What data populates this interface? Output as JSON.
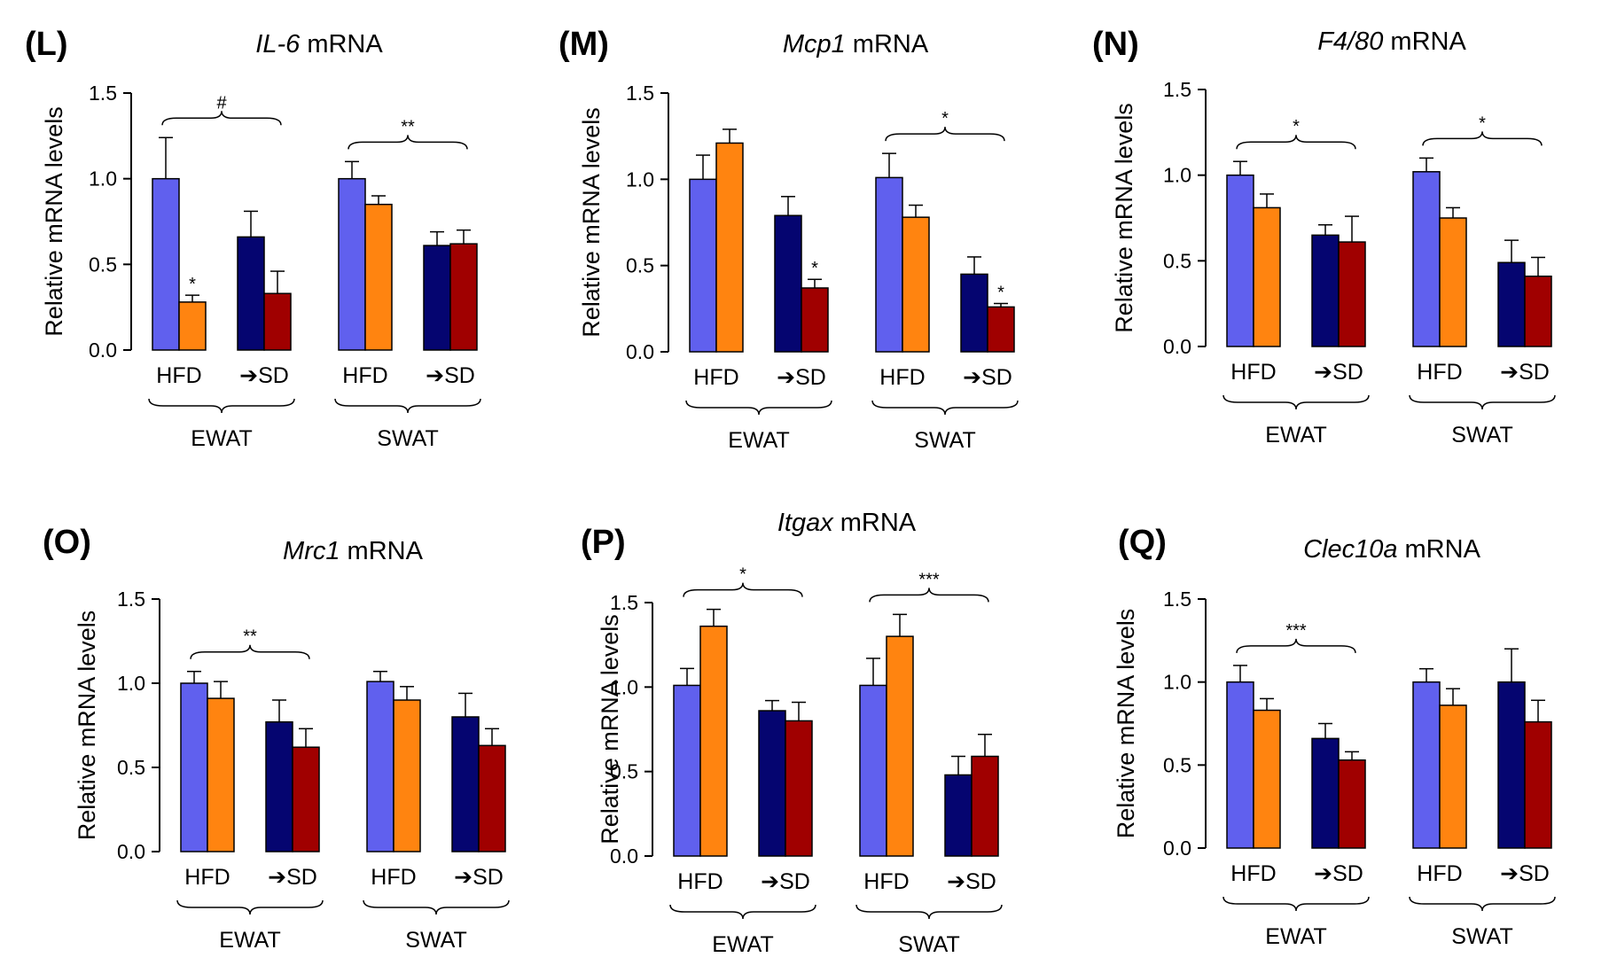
{
  "figure": {
    "ylabel": "Relative mRNA levels",
    "diet_labels": [
      "HFD",
      "➔SD"
    ],
    "colors": {
      "hfd_light": "#6060EE",
      "hfd_orange": "#FF8410",
      "sd_navy": "#050570",
      "sd_red": "#A00000"
    }
  },
  "chart_data": [
    {
      "type": "bar",
      "panel": "(L)",
      "title_italic": "IL-6",
      "title_rest": " mRNA",
      "ylabel": "Relative mRNA levels",
      "ylim": [
        0,
        1.5
      ],
      "yticks": [
        "0.0",
        "0.5",
        "1.0",
        "1.5"
      ],
      "groups": [
        "EWAT",
        "SWAT"
      ],
      "subgroups": [
        "HFD",
        "➔SD"
      ],
      "values": [
        [
          1.0,
          0.28,
          0.66,
          0.33
        ],
        [
          1.0,
          0.85,
          0.61,
          0.62
        ]
      ],
      "errors": [
        [
          0.24,
          0.04,
          0.15,
          0.13
        ],
        [
          0.1,
          0.05,
          0.08,
          0.08
        ]
      ],
      "bar_marks": [
        [
          null,
          "*",
          null,
          null
        ],
        [
          null,
          null,
          null,
          null
        ]
      ],
      "brackets": [
        "#",
        "**"
      ]
    },
    {
      "type": "bar",
      "panel": "(M)",
      "title_italic": "Mcp1",
      "title_rest": " mRNA",
      "ylabel": "Relative mRNA levels",
      "ylim": [
        0,
        1.5
      ],
      "yticks": [
        "0.0",
        "0.5",
        "1.0",
        "1.5"
      ],
      "groups": [
        "EWAT",
        "SWAT"
      ],
      "subgroups": [
        "HFD",
        "➔SD"
      ],
      "values": [
        [
          1.0,
          1.21,
          0.79,
          0.37
        ],
        [
          1.01,
          0.78,
          0.45,
          0.26
        ]
      ],
      "errors": [
        [
          0.14,
          0.08,
          0.11,
          0.05
        ],
        [
          0.14,
          0.07,
          0.1,
          0.02
        ]
      ],
      "bar_marks": [
        [
          null,
          null,
          null,
          "*"
        ],
        [
          null,
          null,
          null,
          "*"
        ]
      ],
      "brackets": [
        null,
        "*"
      ]
    },
    {
      "type": "bar",
      "panel": "(N)",
      "title_italic": "F4/80",
      "title_rest": " mRNA",
      "ylabel": "Relative mRNA levels",
      "ylim": [
        0,
        1.5
      ],
      "yticks": [
        "0.0",
        "0.5",
        "1.0",
        "1.5"
      ],
      "groups": [
        "EWAT",
        "SWAT"
      ],
      "subgroups": [
        "HFD",
        "➔SD"
      ],
      "values": [
        [
          1.0,
          0.81,
          0.65,
          0.61
        ],
        [
          1.02,
          0.75,
          0.49,
          0.41
        ]
      ],
      "errors": [
        [
          0.08,
          0.08,
          0.06,
          0.15
        ],
        [
          0.08,
          0.06,
          0.13,
          0.11
        ]
      ],
      "bar_marks": [
        [
          null,
          null,
          null,
          null
        ],
        [
          null,
          null,
          null,
          null
        ]
      ],
      "brackets": [
        "*",
        "*"
      ]
    },
    {
      "type": "bar",
      "panel": "(O)",
      "title_italic": "Mrc1",
      "title_rest": " mRNA",
      "ylabel": "Relative mRNA levels",
      "ylim": [
        0,
        1.5
      ],
      "yticks": [
        "0.0",
        "0.5",
        "1.0",
        "1.5"
      ],
      "groups": [
        "EWAT",
        "SWAT"
      ],
      "subgroups": [
        "HFD",
        "➔SD"
      ],
      "values": [
        [
          1.0,
          0.91,
          0.77,
          0.62
        ],
        [
          1.01,
          0.9,
          0.8,
          0.63
        ]
      ],
      "errors": [
        [
          0.07,
          0.1,
          0.13,
          0.11
        ],
        [
          0.06,
          0.08,
          0.14,
          0.1
        ]
      ],
      "bar_marks": [
        [
          null,
          null,
          null,
          null
        ],
        [
          null,
          null,
          null,
          null
        ]
      ],
      "brackets": [
        "**",
        null
      ]
    },
    {
      "type": "bar",
      "panel": "(P)",
      "title_italic": "Itgax",
      "title_rest": " mRNA",
      "ylabel": "Relative mRNA levels",
      "ylim": [
        0,
        1.5
      ],
      "yticks": [
        "0.0",
        "0.5",
        "1.0",
        "1.5"
      ],
      "groups": [
        "EWAT",
        "SWAT"
      ],
      "subgroups": [
        "HFD",
        "➔SD"
      ],
      "values": [
        [
          1.01,
          1.36,
          0.86,
          0.8
        ],
        [
          1.01,
          1.3,
          0.48,
          0.59
        ]
      ],
      "errors": [
        [
          0.1,
          0.1,
          0.06,
          0.11
        ],
        [
          0.16,
          0.13,
          0.11,
          0.13
        ]
      ],
      "bar_marks": [
        [
          null,
          null,
          null,
          null
        ],
        [
          null,
          null,
          null,
          null
        ]
      ],
      "brackets": [
        "*",
        "***"
      ]
    },
    {
      "type": "bar",
      "panel": "(Q)",
      "title_italic": "Clec10a",
      "title_rest": " mRNA",
      "ylabel": "Relative mRNA levels",
      "ylim": [
        0,
        1.5
      ],
      "yticks": [
        "0.0",
        "0.5",
        "1.0",
        "1.5"
      ],
      "groups": [
        "EWAT",
        "SWAT"
      ],
      "subgroups": [
        "HFD",
        "➔SD"
      ],
      "values": [
        [
          1.0,
          0.83,
          0.66,
          0.53
        ],
        [
          1.0,
          0.86,
          1.0,
          0.76
        ]
      ],
      "errors": [
        [
          0.1,
          0.07,
          0.09,
          0.05
        ],
        [
          0.08,
          0.1,
          0.2,
          0.13
        ]
      ],
      "bar_marks": [
        [
          null,
          null,
          null,
          null
        ],
        [
          null,
          null,
          null,
          null
        ]
      ],
      "brackets": [
        "***",
        null
      ]
    }
  ]
}
